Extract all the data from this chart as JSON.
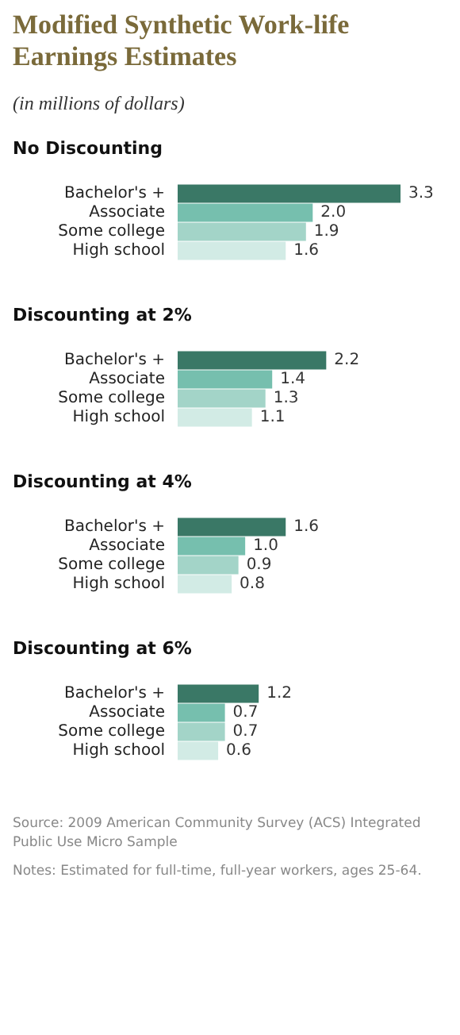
{
  "chart_data": [
    {
      "type": "bar",
      "orientation": "horizontal",
      "title": "Modified Synthetic Work-life Earnings Estimates",
      "annotations": [
        "(in millions of dollars)"
      ],
      "subtitle": "No Discounting",
      "categories": [
        "Bachelor's +",
        "Associate",
        "Some college",
        "High school"
      ],
      "values": [
        3.3,
        2.0,
        1.9,
        1.6
      ],
      "value_labels": [
        "3.3",
        "2.0",
        "1.9",
        "1.6"
      ],
      "colors": [
        "#3a7866",
        "#76bfae",
        "#a3d4c8",
        "#d2ebe5"
      ],
      "tick_labels": "y"
    },
    {
      "type": "bar",
      "orientation": "horizontal",
      "subtitle": "Discounting at 2%",
      "categories": [
        "Bachelor's +",
        "Associate",
        "Some college",
        "High school"
      ],
      "values": [
        2.2,
        1.4,
        1.3,
        1.1
      ],
      "value_labels": [
        "2.2",
        "1.4",
        "1.3",
        "1.1"
      ],
      "colors": [
        "#3a7866",
        "#76bfae",
        "#a3d4c8",
        "#d2ebe5"
      ],
      "tick_labels": "y"
    },
    {
      "type": "bar",
      "orientation": "horizontal",
      "subtitle": "Discounting at 4%",
      "categories": [
        "Bachelor's +",
        "Associate",
        "Some college",
        "High school"
      ],
      "values": [
        1.6,
        1.0,
        0.9,
        0.8
      ],
      "value_labels": [
        "1.6",
        "1.0",
        "0.9",
        "0.8"
      ],
      "colors": [
        "#3a7866",
        "#76bfae",
        "#a3d4c8",
        "#d2ebe5"
      ],
      "tick_labels": "y"
    },
    {
      "type": "bar",
      "orientation": "horizontal",
      "subtitle": "Discounting at 6%",
      "categories": [
        "Bachelor's +",
        "Associate",
        "Some college",
        "High school"
      ],
      "values": [
        1.2,
        0.7,
        0.7,
        0.6
      ],
      "value_labels": [
        "1.2",
        "0.7",
        "0.7",
        "0.6"
      ],
      "colors": [
        "#3a7866",
        "#76bfae",
        "#a3d4c8",
        "#d2ebe5"
      ],
      "tick_labels": "y",
      "annotations": [
        "Source: 2009 American Community Survey (ACS) Integrated Public Use Micro Sample",
        "Notes: Estimated for full-time, full-year workers, ages 25-64."
      ]
    }
  ]
}
